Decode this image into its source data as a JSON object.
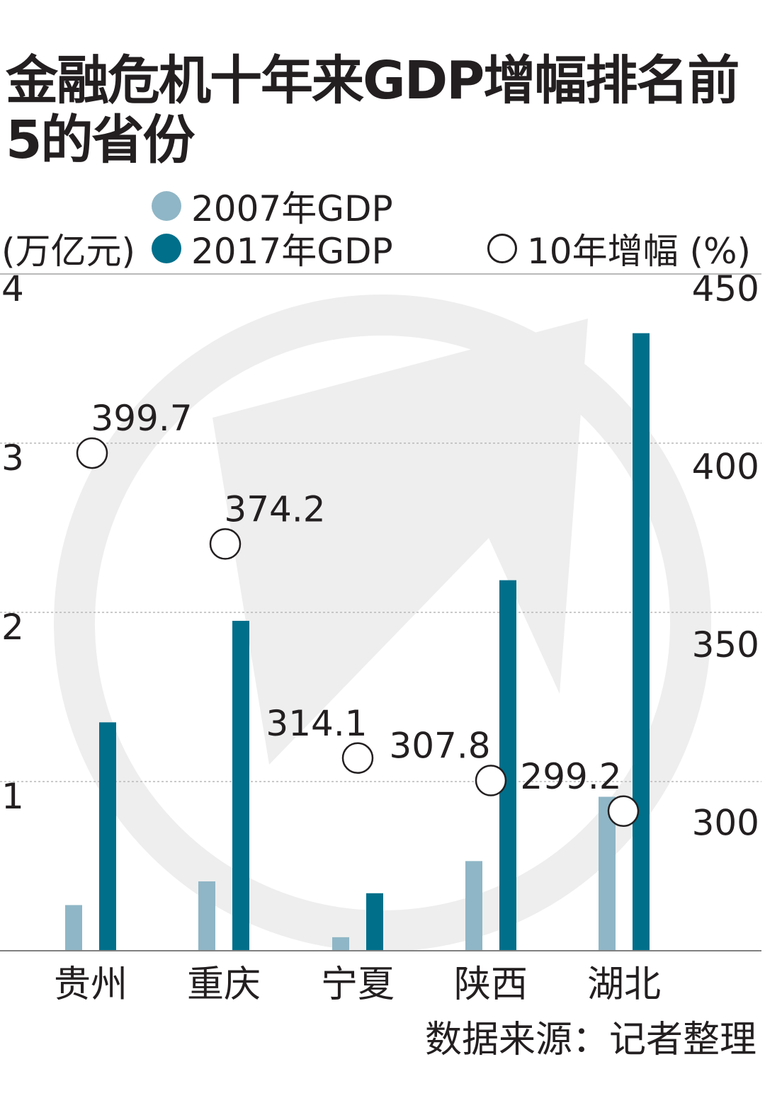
{
  "title": "金融危机十年来GDP增幅排名前5的省份",
  "legend": {
    "gdp2007": "2007年GDP",
    "gdp2017": "2017年GDP",
    "growth": "10年增幅 (%)"
  },
  "left_axis_unit": "(万亿元)",
  "source": "数据来源：记者整理",
  "colors": {
    "gdp2007": "#8fb6c6",
    "gdp2017": "#006f8a",
    "text": "#231f20",
    "grid": "#b9b9b9",
    "watermark": "#eeeeee"
  },
  "chart_data": {
    "type": "bar",
    "title": "金融危机十年来GDP增幅排名前5的省份",
    "categories": [
      "贵州",
      "重庆",
      "宁夏",
      "陕西",
      "湖北"
    ],
    "series": [
      {
        "name": "2007年GDP",
        "axis": "left",
        "values": [
          0.27,
          0.41,
          0.08,
          0.53,
          0.91
        ]
      },
      {
        "name": "2017年GDP",
        "axis": "left",
        "values": [
          1.35,
          1.95,
          0.34,
          2.19,
          3.65
        ]
      },
      {
        "name": "10年增幅 (%)",
        "axis": "right",
        "type": "scatter",
        "values": [
          399.7,
          374.2,
          314.1,
          307.8,
          299.2
        ]
      }
    ],
    "left_axis": {
      "label": "(万亿元)",
      "ylim": [
        0,
        4
      ],
      "ticks": [
        "1",
        "2",
        "3",
        "4"
      ]
    },
    "right_axis": {
      "label": "",
      "ylim": [
        260,
        450
      ],
      "ticks": [
        "300",
        "350",
        "400",
        "450"
      ]
    },
    "legend_position": "top",
    "grid": true
  }
}
